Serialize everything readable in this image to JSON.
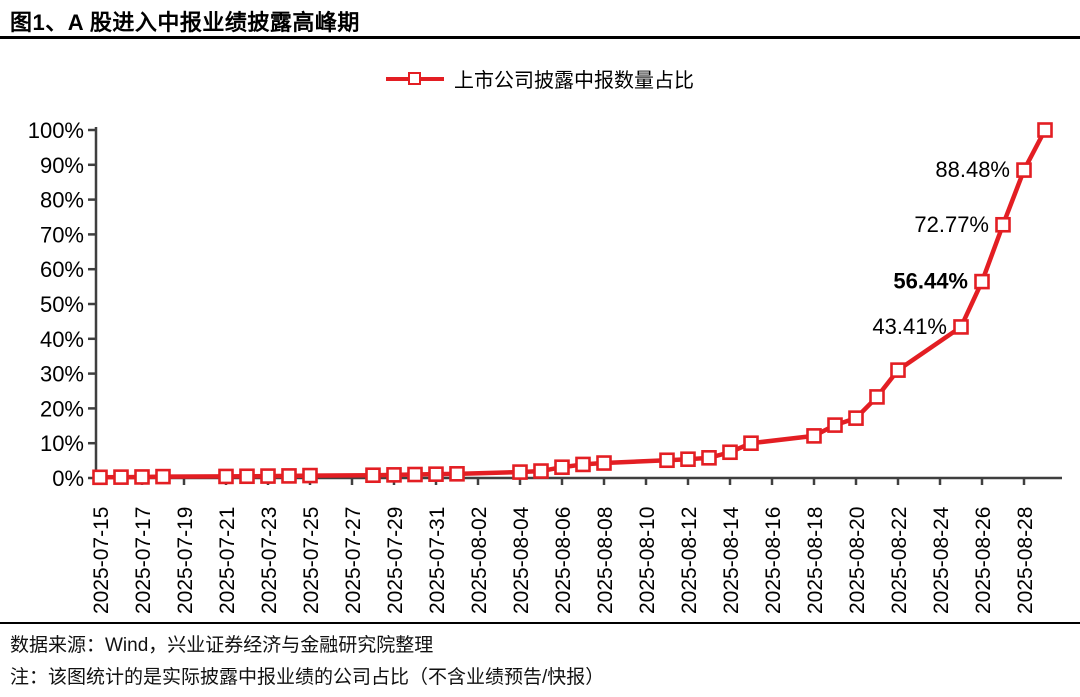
{
  "header": {
    "title": "图1、A 股进入中报业绩披露高峰期"
  },
  "legend": {
    "label": "上市公司披露中报数量占比"
  },
  "footer": {
    "source": "数据来源：Wind，兴业证券经济与金融研究院整理",
    "note": "注：该图统计的是实际披露中报业绩的公司占比（不含业绩预告/快报）"
  },
  "colors": {
    "series": "#e31e23",
    "marker_fill": "#ffffff",
    "axis": "#3f3f3f",
    "data_label": "#000000",
    "rule": "#000000"
  },
  "chart_data": {
    "type": "line",
    "title": "上市公司披露中报数量占比",
    "legend_position": "top-center",
    "grid": false,
    "xlabel": "",
    "ylabel": "",
    "ylim": [
      0,
      100
    ],
    "y_ticks": [
      "0%",
      "10%",
      "20%",
      "30%",
      "40%",
      "50%",
      "60%",
      "70%",
      "80%",
      "90%",
      "100%"
    ],
    "x_ticks": [
      "2025-07-15",
      "2025-07-17",
      "2025-07-19",
      "2025-07-21",
      "2025-07-23",
      "2025-07-25",
      "2025-07-27",
      "2025-07-29",
      "2025-07-31",
      "2025-08-02",
      "2025-08-04",
      "2025-08-06",
      "2025-08-08",
      "2025-08-10",
      "2025-08-12",
      "2025-08-14",
      "2025-08-16",
      "2025-08-18",
      "2025-08-20",
      "2025-08-22",
      "2025-08-24",
      "2025-08-26",
      "2025-08-28"
    ],
    "x_start": "2025-07-15",
    "x_end": "2025-08-29",
    "series": [
      {
        "name": "上市公司披露中报数量占比",
        "points": [
          {
            "date": "2025-07-15",
            "value": 0.2
          },
          {
            "date": "2025-07-16",
            "value": 0.25
          },
          {
            "date": "2025-07-17",
            "value": 0.3
          },
          {
            "date": "2025-07-18",
            "value": 0.4
          },
          {
            "date": "2025-07-21",
            "value": 0.45
          },
          {
            "date": "2025-07-22",
            "value": 0.5
          },
          {
            "date": "2025-07-23",
            "value": 0.55
          },
          {
            "date": "2025-07-24",
            "value": 0.6
          },
          {
            "date": "2025-07-25",
            "value": 0.7
          },
          {
            "date": "2025-07-28",
            "value": 0.8
          },
          {
            "date": "2025-07-29",
            "value": 0.9
          },
          {
            "date": "2025-07-30",
            "value": 1.0
          },
          {
            "date": "2025-07-31",
            "value": 1.1
          },
          {
            "date": "2025-08-01",
            "value": 1.2
          },
          {
            "date": "2025-08-04",
            "value": 1.7
          },
          {
            "date": "2025-08-05",
            "value": 2.0
          },
          {
            "date": "2025-08-06",
            "value": 3.1
          },
          {
            "date": "2025-08-07",
            "value": 3.9
          },
          {
            "date": "2025-08-08",
            "value": 4.3
          },
          {
            "date": "2025-08-11",
            "value": 5.1
          },
          {
            "date": "2025-08-12",
            "value": 5.4
          },
          {
            "date": "2025-08-13",
            "value": 5.8
          },
          {
            "date": "2025-08-14",
            "value": 7.4
          },
          {
            "date": "2025-08-15",
            "value": 10.0
          },
          {
            "date": "2025-08-18",
            "value": 12.1
          },
          {
            "date": "2025-08-19",
            "value": 15.2
          },
          {
            "date": "2025-08-20",
            "value": 17.2
          },
          {
            "date": "2025-08-21",
            "value": 23.3
          },
          {
            "date": "2025-08-22",
            "value": 31.0
          },
          {
            "date": "2025-08-25",
            "value": 43.41,
            "label": "43.41%",
            "bold": false
          },
          {
            "date": "2025-08-26",
            "value": 56.44,
            "label": "56.44%",
            "bold": true
          },
          {
            "date": "2025-08-27",
            "value": 72.77,
            "label": "72.77%",
            "bold": false
          },
          {
            "date": "2025-08-28",
            "value": 88.48,
            "label": "88.48%",
            "bold": false
          },
          {
            "date": "2025-08-29",
            "value": 100.0
          }
        ]
      }
    ]
  }
}
